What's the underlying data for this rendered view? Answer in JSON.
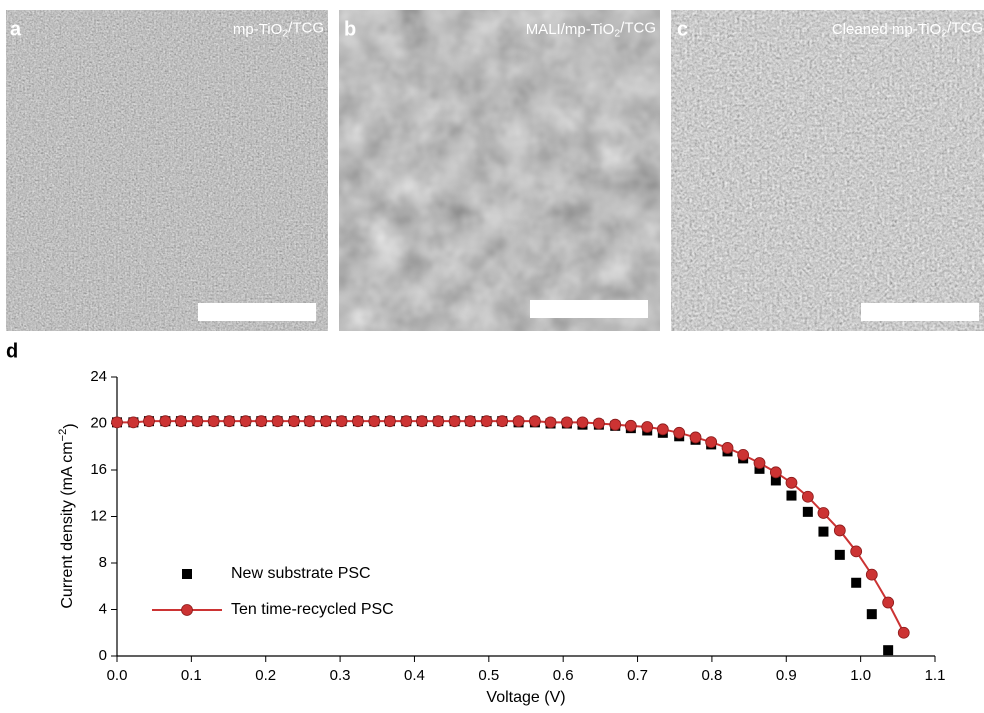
{
  "panels": [
    {
      "label": "a",
      "caption": "mp-TiO2/TCG"
    },
    {
      "label": "b",
      "caption": "MALI/mp-TiO2/TCG"
    },
    {
      "label": "c",
      "caption": "Cleaned mp-TiO2/TCG"
    }
  ],
  "chart_data": {
    "type": "scatter-line",
    "panel_label": "d",
    "x_label": "Voltage (V)",
    "y_label": "Current density (mA cm−2)",
    "xlim": [
      0,
      1.1
    ],
    "ylim": [
      0,
      24
    ],
    "xticks": [
      {
        "value": 0,
        "label": "0.0"
      },
      0.1,
      0.2,
      0.3,
      0.4,
      0.5,
      0.6,
      0.7,
      0.8,
      0.9,
      {
        "value": 1,
        "label": "1.0"
      },
      1.1
    ],
    "yticks": [
      0,
      4,
      8,
      12,
      16,
      20,
      24
    ],
    "x": [
      0,
      0.022,
      0.043,
      0.065,
      0.086,
      0.108,
      0.13,
      0.151,
      0.173,
      0.194,
      0.216,
      0.238,
      0.259,
      0.281,
      0.302,
      0.324,
      0.346,
      0.367,
      0.389,
      0.41,
      0.432,
      0.454,
      0.475,
      0.497,
      0.518,
      0.54,
      0.562,
      0.583,
      0.605,
      0.626,
      0.648,
      0.67,
      0.691,
      0.713,
      0.734,
      0.756,
      0.778,
      0.799,
      0.821,
      0.842,
      0.864,
      0.886,
      0.907,
      0.929,
      0.95,
      0.972,
      0.994,
      1.015,
      1.037,
      1.058
    ],
    "series": [
      {
        "name": "New substrate PSC",
        "color": "#000000",
        "marker": "square",
        "values": [
          20.1,
          20.1,
          20.2,
          20.2,
          20.2,
          20.2,
          20.2,
          20.2,
          20.2,
          20.2,
          20.2,
          20.2,
          20.2,
          20.2,
          20.2,
          20.2,
          20.2,
          20.2,
          20.2,
          20.2,
          20.2,
          20.2,
          20.2,
          20.2,
          20.2,
          20.1,
          20.1,
          20.0,
          20.0,
          19.9,
          19.9,
          19.8,
          19.6,
          19.4,
          19.2,
          18.9,
          18.6,
          18.2,
          17.6,
          17.0,
          16.1,
          15.1,
          13.8,
          12.4,
          10.7,
          8.7,
          6.3,
          3.6,
          0.5,
          null
        ]
      },
      {
        "name": "Ten time-recycled PSC",
        "color": "#cc3333",
        "marker": "circle",
        "values": [
          20.1,
          20.1,
          20.2,
          20.2,
          20.2,
          20.2,
          20.2,
          20.2,
          20.2,
          20.2,
          20.2,
          20.2,
          20.2,
          20.2,
          20.2,
          20.2,
          20.2,
          20.2,
          20.2,
          20.2,
          20.2,
          20.2,
          20.2,
          20.2,
          20.2,
          20.2,
          20.2,
          20.1,
          20.1,
          20.1,
          20.0,
          19.9,
          19.8,
          19.7,
          19.5,
          19.2,
          18.8,
          18.4,
          17.9,
          17.3,
          16.6,
          15.8,
          14.9,
          13.7,
          12.3,
          10.8,
          9.0,
          7.0,
          4.6,
          2.0
        ]
      }
    ]
  }
}
